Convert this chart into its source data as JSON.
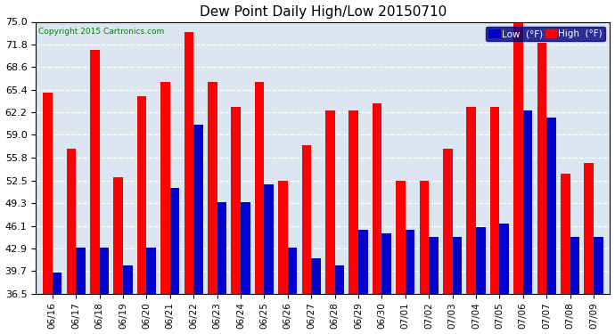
{
  "title": "Dew Point Daily High/Low 20150710",
  "copyright": "Copyright 2015 Cartronics.com",
  "categories": [
    "06/16",
    "06/17",
    "06/18",
    "06/19",
    "06/20",
    "06/21",
    "06/22",
    "06/23",
    "06/24",
    "06/25",
    "06/26",
    "06/27",
    "06/28",
    "06/29",
    "06/30",
    "07/01",
    "07/02",
    "07/03",
    "07/04",
    "07/05",
    "07/06",
    "07/07",
    "07/08",
    "07/09"
  ],
  "high_values": [
    65.0,
    57.0,
    71.0,
    53.0,
    64.5,
    66.5,
    73.5,
    66.5,
    63.0,
    66.5,
    52.5,
    57.5,
    62.5,
    62.5,
    63.5,
    52.5,
    52.5,
    57.0,
    63.0,
    63.0,
    75.0,
    72.0,
    53.5,
    55.0
  ],
  "low_values": [
    39.5,
    43.0,
    43.0,
    40.5,
    43.0,
    51.5,
    60.5,
    49.5,
    49.5,
    52.0,
    43.0,
    41.5,
    40.5,
    45.5,
    45.0,
    45.5,
    44.5,
    44.5,
    46.0,
    46.5,
    62.5,
    61.5,
    44.5,
    44.5
  ],
  "high_color": "#ff0000",
  "low_color": "#0000cc",
  "bg_color": "#ffffff",
  "plot_bg_color": "#dce6f1",
  "grid_color": "#ffffff",
  "ylim": [
    36.5,
    75.0
  ],
  "yticks": [
    36.5,
    39.7,
    42.9,
    46.1,
    49.3,
    52.5,
    55.8,
    59.0,
    62.2,
    65.4,
    68.6,
    71.8,
    75.0
  ],
  "bar_width": 0.4,
  "legend_low_label": "Low  (°F)",
  "legend_high_label": "High  (°F)"
}
